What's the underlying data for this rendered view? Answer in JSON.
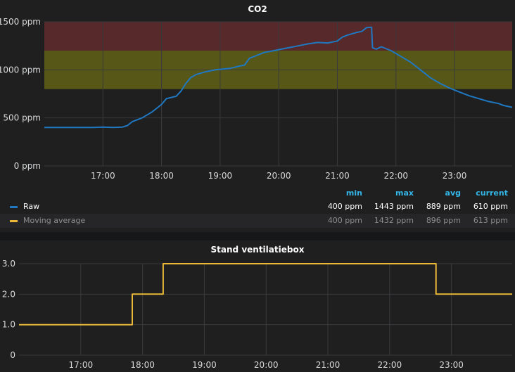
{
  "panels": {
    "co2": {
      "title": "CO2",
      "legend": {
        "headers": [
          "min",
          "max",
          "avg",
          "current"
        ],
        "rows": [
          {
            "name": "Raw",
            "color": "#1f78c1",
            "min": "400 ppm",
            "max": "1443 ppm",
            "avg": "889 ppm",
            "current": "610 ppm"
          },
          {
            "name": "Moving average",
            "color": "#eab839",
            "min": "400 ppm",
            "max": "1432 ppm",
            "avg": "896 ppm",
            "current": "613 ppm"
          }
        ]
      }
    },
    "vent": {
      "title": "Stand ventilatiebox"
    }
  },
  "chart_data": [
    {
      "type": "line",
      "title": "CO2",
      "x_ticks": [
        "17:00",
        "18:00",
        "19:00",
        "20:00",
        "21:00",
        "22:00",
        "23:00"
      ],
      "y_ticks": [
        "0 ppm",
        "500 ppm",
        "1000 ppm",
        "1500 ppm"
      ],
      "xlim": [
        "16:00",
        "23:59"
      ],
      "ylim": [
        0,
        1500
      ],
      "grid": true,
      "thresholds": [
        {
          "from": 800,
          "to": 1200,
          "color": "#6b6b16"
        },
        {
          "from": 1200,
          "to": 1500,
          "color": "#6b2e2e"
        }
      ],
      "series": [
        {
          "name": "Raw",
          "color": "#1f78c1",
          "points": [
            [
              "16:00",
              400
            ],
            [
              "16:30",
              400
            ],
            [
              "16:50",
              400
            ],
            [
              "17:00",
              405
            ],
            [
              "17:10",
              400
            ],
            [
              "17:20",
              405
            ],
            [
              "17:25",
              420
            ],
            [
              "17:30",
              460
            ],
            [
              "17:40",
              500
            ],
            [
              "17:50",
              560
            ],
            [
              "17:55",
              600
            ],
            [
              "18:00",
              640
            ],
            [
              "18:05",
              700
            ],
            [
              "18:15",
              725
            ],
            [
              "18:20",
              780
            ],
            [
              "18:25",
              860
            ],
            [
              "18:30",
              920
            ],
            [
              "18:35",
              950
            ],
            [
              "18:45",
              980
            ],
            [
              "18:55",
              1000
            ],
            [
              "19:10",
              1015
            ],
            [
              "19:20",
              1040
            ],
            [
              "19:25",
              1050
            ],
            [
              "19:30",
              1120
            ],
            [
              "19:35",
              1140
            ],
            [
              "19:45",
              1180
            ],
            [
              "19:55",
              1200
            ],
            [
              "20:00",
              1210
            ],
            [
              "20:10",
              1230
            ],
            [
              "20:20",
              1250
            ],
            [
              "20:30",
              1270
            ],
            [
              "20:40",
              1285
            ],
            [
              "20:50",
              1280
            ],
            [
              "21:00",
              1300
            ],
            [
              "21:05",
              1340
            ],
            [
              "21:10",
              1360
            ],
            [
              "21:20",
              1390
            ],
            [
              "21:25",
              1400
            ],
            [
              "21:30",
              1440
            ],
            [
              "21:35",
              1443
            ],
            [
              "21:36",
              1230
            ],
            [
              "21:40",
              1215
            ],
            [
              "21:45",
              1240
            ],
            [
              "21:55",
              1200
            ],
            [
              "22:05",
              1140
            ],
            [
              "22:15",
              1080
            ],
            [
              "22:25",
              1000
            ],
            [
              "22:35",
              920
            ],
            [
              "22:45",
              860
            ],
            [
              "22:55",
              810
            ],
            [
              "23:05",
              770
            ],
            [
              "23:15",
              730
            ],
            [
              "23:25",
              700
            ],
            [
              "23:35",
              670
            ],
            [
              "23:45",
              650
            ],
            [
              "23:50",
              630
            ],
            [
              "23:59",
              610
            ]
          ]
        },
        {
          "name": "Moving average",
          "color": "#eab839",
          "points": []
        }
      ]
    },
    {
      "type": "line",
      "title": "Stand ventilatiebox",
      "x_ticks": [
        "17:00",
        "18:00",
        "19:00",
        "20:00",
        "21:00",
        "22:00",
        "23:00"
      ],
      "y_ticks": [
        "0",
        "1.0",
        "2.0",
        "3.0"
      ],
      "xlim": [
        "16:00",
        "23:59"
      ],
      "ylim": [
        0,
        3
      ],
      "grid": true,
      "series": [
        {
          "color": "#eab839",
          "points": [
            [
              "16:00",
              1
            ],
            [
              "17:50",
              1
            ],
            [
              "17:50",
              2
            ],
            [
              "18:20",
              2
            ],
            [
              "18:20",
              3
            ],
            [
              "22:45",
              3
            ],
            [
              "22:45",
              2
            ],
            [
              "23:59",
              2
            ]
          ]
        }
      ]
    }
  ]
}
